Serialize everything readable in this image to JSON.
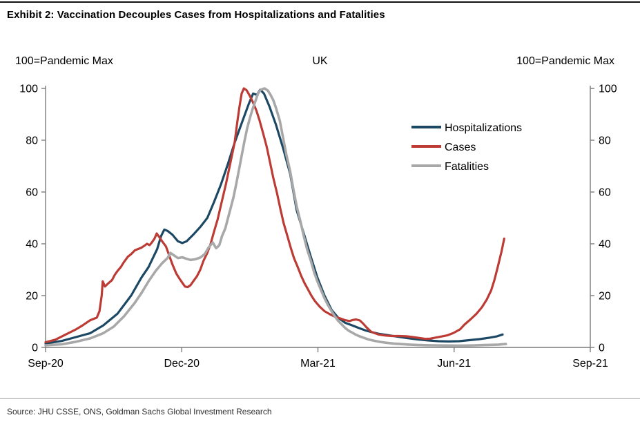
{
  "header": {
    "title": "Exhibit 2: Vaccination Decouples Cases from Hospitalizations and Fatalities"
  },
  "footer": {
    "source": "Source: JHU CSSE, ONS, Goldman Sachs Global Investment Research"
  },
  "chart_data": {
    "type": "line",
    "title": "UK",
    "left_axis_label": "100=Pandemic Max",
    "right_axis_label": "100=Pandemic Max",
    "x_ticks": [
      {
        "t": 0.0,
        "label": "Sep-20"
      },
      {
        "t": 0.25,
        "label": "Dec-20"
      },
      {
        "t": 0.5,
        "label": "Mar-21"
      },
      {
        "t": 0.75,
        "label": "Jun-21"
      },
      {
        "t": 1.0,
        "label": "Sep-21"
      }
    ],
    "y_ticks": [
      0,
      20,
      40,
      60,
      80,
      100
    ],
    "ylim": [
      0,
      100
    ],
    "xlim": [
      0,
      1
    ],
    "x_unit": "fraction of axis span Sep-2020 to Sep-2021",
    "grid": false,
    "legend_position": "upper right inside plot",
    "axis_color": "#7a7a7a",
    "tick_label_color": "#000000",
    "series": [
      {
        "name": "Hospitalizations",
        "color": "#1c4864",
        "x": [
          0,
          0.03,
          0.056,
          0.082,
          0.106,
          0.132,
          0.157,
          0.176,
          0.189,
          0.205,
          0.212,
          0.218,
          0.224,
          0.233,
          0.243,
          0.251,
          0.259,
          0.271,
          0.284,
          0.297,
          0.309,
          0.322,
          0.335,
          0.347,
          0.36,
          0.373,
          0.381,
          0.388,
          0.394,
          0.401,
          0.411,
          0.423,
          0.436,
          0.449,
          0.461,
          0.474,
          0.487,
          0.499,
          0.512,
          0.525,
          0.537,
          0.55,
          0.563,
          0.575,
          0.588,
          0.601,
          0.613,
          0.626,
          0.645,
          0.664,
          0.683,
          0.702,
          0.721,
          0.74,
          0.759,
          0.778,
          0.797,
          0.816,
          0.829,
          0.839
        ],
        "values": [
          1.5,
          2.5,
          4,
          5.5,
          8.5,
          13,
          20,
          27,
          31,
          38,
          43,
          45.5,
          45,
          43.5,
          41,
          40.3,
          41,
          43.5,
          46.5,
          50,
          56,
          63,
          71,
          79,
          86.5,
          94,
          98,
          97.5,
          99.5,
          98,
          93,
          86,
          77,
          67,
          53,
          44,
          35,
          27,
          20,
          14.5,
          11.5,
          9.5,
          8.5,
          7.5,
          6.5,
          5.8,
          5.2,
          4.8,
          4.2,
          3.6,
          3.1,
          2.7,
          2.4,
          2.3,
          2.4,
          2.8,
          3.2,
          3.8,
          4.3,
          5
        ]
      },
      {
        "name": "Cases",
        "color": "#bc3b34",
        "x": [
          0,
          0.018,
          0.037,
          0.056,
          0.068,
          0.082,
          0.094,
          0.099,
          0.103,
          0.105,
          0.109,
          0.114,
          0.122,
          0.127,
          0.132,
          0.138,
          0.144,
          0.151,
          0.157,
          0.164,
          0.17,
          0.176,
          0.183,
          0.186,
          0.191,
          0.195,
          0.2,
          0.204,
          0.209,
          0.214,
          0.221,
          0.227,
          0.233,
          0.24,
          0.246,
          0.251,
          0.256,
          0.261,
          0.266,
          0.271,
          0.278,
          0.284,
          0.29,
          0.297,
          0.303,
          0.309,
          0.316,
          0.322,
          0.331,
          0.338,
          0.347,
          0.352,
          0.356,
          0.36,
          0.364,
          0.369,
          0.374,
          0.38,
          0.387,
          0.393,
          0.399,
          0.406,
          0.412,
          0.418,
          0.425,
          0.431,
          0.437,
          0.444,
          0.45,
          0.456,
          0.463,
          0.469,
          0.475,
          0.482,
          0.488,
          0.494,
          0.503,
          0.512,
          0.522,
          0.532,
          0.541,
          0.55,
          0.558,
          0.564,
          0.57,
          0.577,
          0.583,
          0.589,
          0.598,
          0.611,
          0.624,
          0.636,
          0.649,
          0.662,
          0.674,
          0.687,
          0.697,
          0.706,
          0.716,
          0.726,
          0.738,
          0.749,
          0.761,
          0.769,
          0.78,
          0.791,
          0.801,
          0.81,
          0.818,
          0.824,
          0.83,
          0.837,
          0.842
        ],
        "values": [
          2,
          3,
          5,
          7,
          8.5,
          10.5,
          11.5,
          14,
          20,
          25.5,
          23.5,
          24.5,
          26,
          28,
          29.5,
          31,
          33,
          35,
          36,
          37.5,
          38,
          38.5,
          39.5,
          40,
          39.5,
          40.5,
          42,
          44,
          42.5,
          41,
          39,
          35.5,
          32,
          28.5,
          26.5,
          25,
          23.5,
          23.3,
          24,
          25.5,
          27.5,
          30,
          33.5,
          36.5,
          40,
          44.5,
          49.5,
          55,
          63,
          70,
          79,
          87,
          93,
          98,
          100,
          99.3,
          97.5,
          95,
          91.5,
          87.5,
          83,
          77.5,
          71.5,
          65.5,
          59.5,
          53.5,
          48,
          43,
          38.5,
          34.5,
          31,
          27.8,
          25,
          22.3,
          20,
          18,
          15.8,
          14,
          12.8,
          11.8,
          11.2,
          10.5,
          10.2,
          10.6,
          10.8,
          10.4,
          9.2,
          7.8,
          6,
          5,
          4.6,
          4.4,
          4.4,
          4.3,
          4,
          3.6,
          3.3,
          3.4,
          3.8,
          4.2,
          4.7,
          5.6,
          7,
          8.8,
          10.8,
          13,
          15.5,
          18.5,
          22,
          26,
          31,
          37,
          42
        ]
      },
      {
        "name": "Fatalities",
        "color": "#a8a8a8",
        "x": [
          0,
          0.03,
          0.056,
          0.082,
          0.106,
          0.125,
          0.144,
          0.163,
          0.176,
          0.189,
          0.202,
          0.214,
          0.224,
          0.229,
          0.236,
          0.243,
          0.251,
          0.259,
          0.266,
          0.274,
          0.284,
          0.292,
          0.299,
          0.307,
          0.313,
          0.319,
          0.324,
          0.33,
          0.335,
          0.34,
          0.345,
          0.35,
          0.355,
          0.36,
          0.365,
          0.37,
          0.375,
          0.38,
          0.385,
          0.39,
          0.395,
          0.402,
          0.408,
          0.413,
          0.418,
          0.423,
          0.43,
          0.436,
          0.442,
          0.449,
          0.455,
          0.461,
          0.468,
          0.474,
          0.48,
          0.487,
          0.493,
          0.499,
          0.506,
          0.512,
          0.518,
          0.525,
          0.531,
          0.537,
          0.544,
          0.55,
          0.556,
          0.563,
          0.569,
          0.575,
          0.584,
          0.594,
          0.605,
          0.615,
          0.626,
          0.639,
          0.651,
          0.667,
          0.682,
          0.697,
          0.712,
          0.728,
          0.743,
          0.758,
          0.773,
          0.788,
          0.804,
          0.819,
          0.831,
          0.845
        ],
        "values": [
          0.8,
          1.2,
          2.2,
          3.5,
          5.5,
          8,
          12,
          17,
          21,
          25.5,
          29.5,
          32.5,
          34.5,
          36.5,
          35.5,
          34.5,
          34.8,
          34.2,
          33.8,
          34,
          34.7,
          36,
          38.5,
          40.5,
          38.3,
          39.5,
          43,
          46,
          50,
          54,
          58,
          63,
          68.5,
          74,
          79.5,
          84.5,
          88.5,
          92,
          95,
          98,
          99.5,
          100,
          99.2,
          97.5,
          95.5,
          92.5,
          87.5,
          81,
          74.5,
          68,
          61,
          54.5,
          48.5,
          43,
          38,
          33.5,
          29,
          25.5,
          22,
          19,
          16.5,
          14,
          12,
          10.3,
          8.8,
          7.5,
          6.5,
          5.7,
          5,
          4.4,
          3.7,
          3,
          2.5,
          2.1,
          1.8,
          1.5,
          1.3,
          1.1,
          0.95,
          0.85,
          0.8,
          0.75,
          0.72,
          0.7,
          0.72,
          0.8,
          0.9,
          1,
          1.1,
          1.3
        ]
      }
    ]
  }
}
